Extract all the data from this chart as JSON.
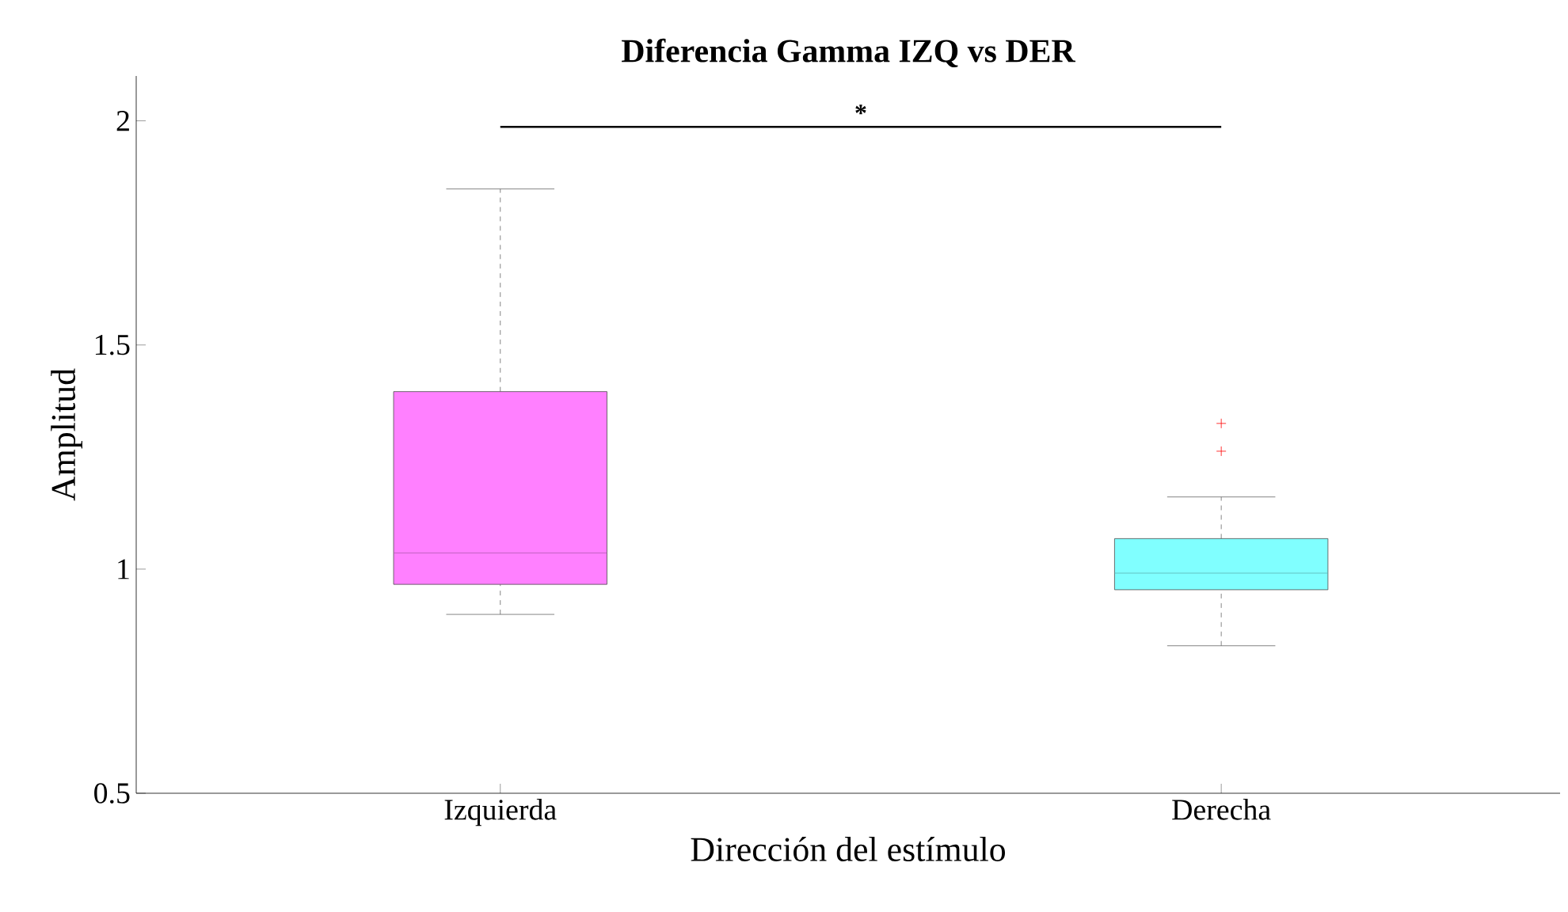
{
  "chart_data": {
    "type": "box",
    "title": "Diferencia Gamma IZQ vs DER",
    "xlabel": "Dirección del estímulo",
    "ylabel": "Amplitud",
    "categories": [
      "Izquierda",
      "Derecha"
    ],
    "colors": [
      "#ff80ff",
      "#80ffff"
    ],
    "boxes": [
      {
        "low": 0.899,
        "q1": 0.966,
        "median": 1.036,
        "q3": 1.396,
        "high": 1.848
      },
      {
        "low": 0.829,
        "q1": 0.954,
        "median": 0.991,
        "q3": 1.068,
        "high": 1.161,
        "outliers": [
          1.325,
          1.263
        ]
      }
    ],
    "ylim": [
      0.5,
      2.1
    ],
    "yticks": [
      0.5,
      1,
      1.5,
      2
    ],
    "annotations": [
      "*"
    ]
  }
}
